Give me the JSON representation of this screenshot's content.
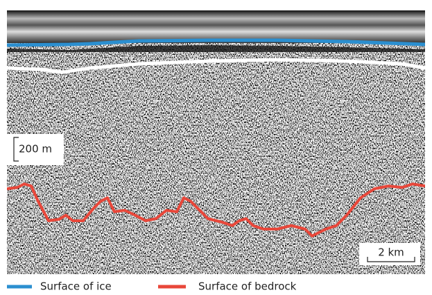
{
  "scale_bars": [
    {
      "label": "200 m"
    },
    {
      "label": "2 km"
    }
  ],
  "legend": [
    {
      "label": "Surface of ice",
      "color": "#2b8fd0"
    },
    {
      "label": "Surface of bedrock",
      "color": "#e8473a"
    }
  ]
}
